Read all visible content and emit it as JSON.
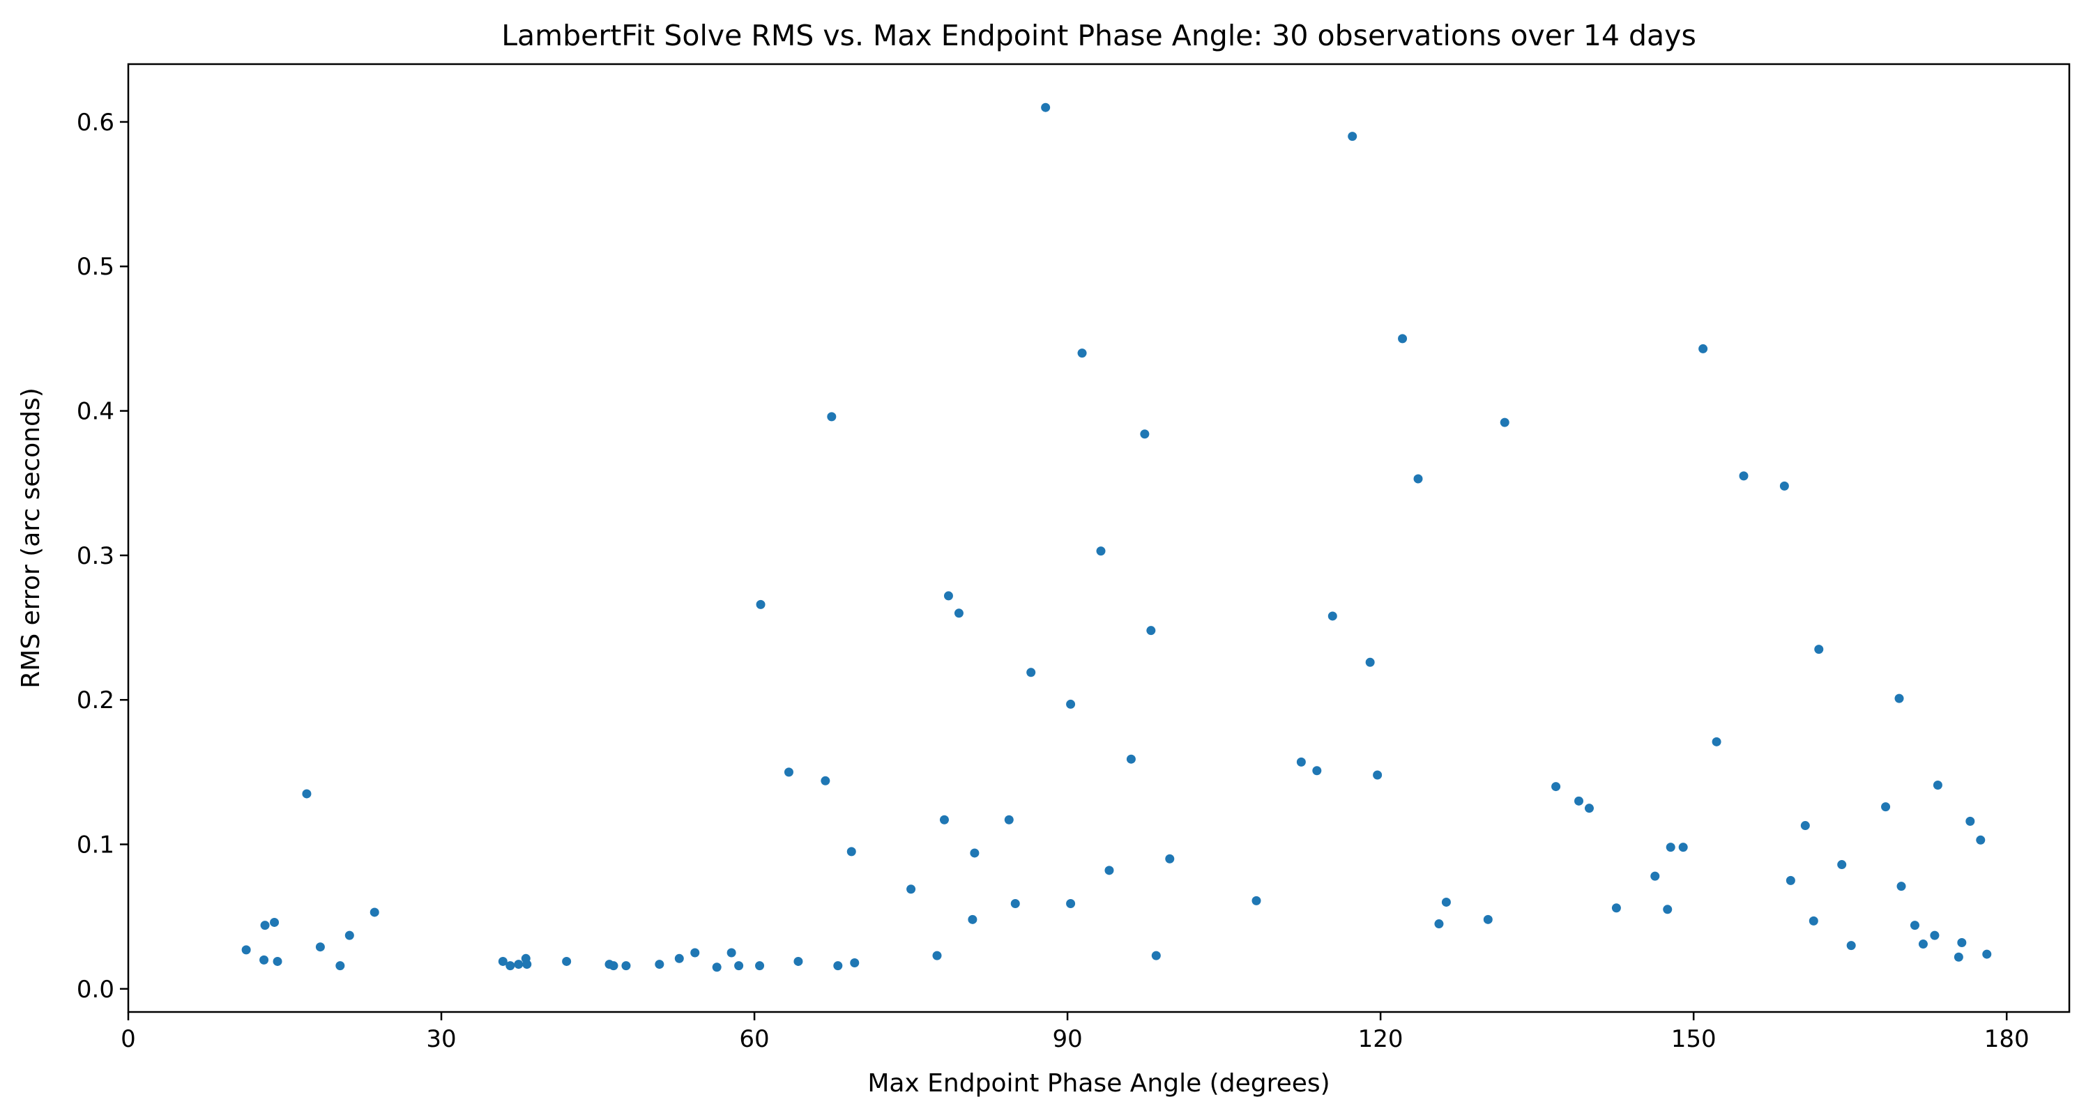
{
  "chart_data": {
    "type": "scatter",
    "title": "LambertFit Solve RMS vs. Max Endpoint Phase Angle: 30 observations over 14 days",
    "xlabel": "Max Endpoint Phase Angle (degrees)",
    "ylabel": "RMS error (arc seconds)",
    "xlim": [
      0,
      186
    ],
    "ylim": [
      -0.016,
      0.64
    ],
    "xticks": [
      0,
      30,
      60,
      90,
      120,
      150,
      180
    ],
    "yticks": [
      0.0,
      0.1,
      0.2,
      0.3,
      0.4,
      0.5,
      0.6
    ],
    "xtick_labels": [
      "0",
      "30",
      "60",
      "90",
      "120",
      "150",
      "180"
    ],
    "ytick_labels": [
      "0.0",
      "0.1",
      "0.2",
      "0.3",
      "0.4",
      "0.5",
      "0.6"
    ],
    "grid": false,
    "legend": "none",
    "marker_color": "#1f77b4",
    "points": [
      [
        11.3,
        0.027
      ],
      [
        13.0,
        0.02
      ],
      [
        13.1,
        0.044
      ],
      [
        14.0,
        0.046
      ],
      [
        14.3,
        0.019
      ],
      [
        17.1,
        0.135
      ],
      [
        18.4,
        0.029
      ],
      [
        20.3,
        0.016
      ],
      [
        21.2,
        0.037
      ],
      [
        23.6,
        0.053
      ],
      [
        35.9,
        0.019
      ],
      [
        36.6,
        0.016
      ],
      [
        37.4,
        0.017
      ],
      [
        38.1,
        0.021
      ],
      [
        38.2,
        0.017
      ],
      [
        42.0,
        0.019
      ],
      [
        46.1,
        0.017
      ],
      [
        46.5,
        0.016
      ],
      [
        47.7,
        0.016
      ],
      [
        50.9,
        0.017
      ],
      [
        52.8,
        0.021
      ],
      [
        54.3,
        0.025
      ],
      [
        56.4,
        0.015
      ],
      [
        57.8,
        0.025
      ],
      [
        58.5,
        0.016
      ],
      [
        60.5,
        0.016
      ],
      [
        60.6,
        0.266
      ],
      [
        63.3,
        0.15
      ],
      [
        64.2,
        0.019
      ],
      [
        66.8,
        0.144
      ],
      [
        67.4,
        0.396
      ],
      [
        68.0,
        0.016
      ],
      [
        69.3,
        0.095
      ],
      [
        69.6,
        0.018
      ],
      [
        75.0,
        0.069
      ],
      [
        77.5,
        0.023
      ],
      [
        78.2,
        0.117
      ],
      [
        78.6,
        0.272
      ],
      [
        79.6,
        0.26
      ],
      [
        80.9,
        0.048
      ],
      [
        81.1,
        0.094
      ],
      [
        84.4,
        0.117
      ],
      [
        85.0,
        0.059
      ],
      [
        86.5,
        0.219
      ],
      [
        87.9,
        0.61
      ],
      [
        90.3,
        0.197
      ],
      [
        90.3,
        0.059
      ],
      [
        91.4,
        0.44
      ],
      [
        93.2,
        0.303
      ],
      [
        94.0,
        0.082
      ],
      [
        96.1,
        0.159
      ],
      [
        97.4,
        0.384
      ],
      [
        98.0,
        0.248
      ],
      [
        98.5,
        0.023
      ],
      [
        99.8,
        0.09
      ],
      [
        108.1,
        0.061
      ],
      [
        112.4,
        0.157
      ],
      [
        113.9,
        0.151
      ],
      [
        115.4,
        0.258
      ],
      [
        117.3,
        0.59
      ],
      [
        119.0,
        0.226
      ],
      [
        119.7,
        0.148
      ],
      [
        122.1,
        0.45
      ],
      [
        123.6,
        0.353
      ],
      [
        125.6,
        0.045
      ],
      [
        126.3,
        0.06
      ],
      [
        130.3,
        0.048
      ],
      [
        131.9,
        0.392
      ],
      [
        136.8,
        0.14
      ],
      [
        139.0,
        0.13
      ],
      [
        140.0,
        0.125
      ],
      [
        142.6,
        0.056
      ],
      [
        146.3,
        0.078
      ],
      [
        147.5,
        0.055
      ],
      [
        147.8,
        0.098
      ],
      [
        149.0,
        0.098
      ],
      [
        150.9,
        0.443
      ],
      [
        152.2,
        0.171
      ],
      [
        154.8,
        0.355
      ],
      [
        158.7,
        0.348
      ],
      [
        159.3,
        0.075
      ],
      [
        160.7,
        0.113
      ],
      [
        161.5,
        0.047
      ],
      [
        162.0,
        0.235
      ],
      [
        164.2,
        0.086
      ],
      [
        165.1,
        0.03
      ],
      [
        168.4,
        0.126
      ],
      [
        169.7,
        0.201
      ],
      [
        169.9,
        0.071
      ],
      [
        171.2,
        0.044
      ],
      [
        172.0,
        0.031
      ],
      [
        173.1,
        0.037
      ],
      [
        173.4,
        0.141
      ],
      [
        175.4,
        0.022
      ],
      [
        175.7,
        0.032
      ],
      [
        176.5,
        0.116
      ],
      [
        177.5,
        0.103
      ],
      [
        178.1,
        0.024
      ]
    ]
  }
}
